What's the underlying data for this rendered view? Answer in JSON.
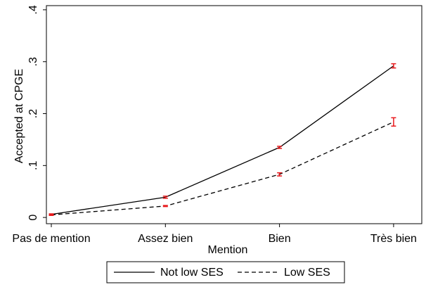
{
  "chart_data": {
    "type": "line",
    "x_label": "Mention",
    "y_label": "Accepted at CPGE",
    "categories": [
      "Pas de mention",
      "Assez bien",
      "Bien",
      "Très bien"
    ],
    "series": [
      {
        "name": "Not low SES",
        "color": "#000000",
        "dash": false,
        "values": [
          0.006,
          0.039,
          0.135,
          0.292
        ],
        "errors": [
          0.001,
          0.002,
          0.002,
          0.004
        ]
      },
      {
        "name": "Low SES",
        "color": "#000000",
        "dash": true,
        "values": [
          0.005,
          0.022,
          0.083,
          0.184
        ],
        "errors": [
          0.001,
          0.001,
          0.003,
          0.008
        ]
      }
    ],
    "error_color": "#e8191c",
    "ylim": [
      -0.012,
      0.408
    ],
    "yticks": [
      0,
      {
        "value": 0.1,
        "label": ".1"
      },
      {
        "value": 0.2,
        "label": ".2"
      },
      {
        "value": 0.3,
        "label": ".3"
      },
      {
        "value": 0.4,
        "label": ".4"
      }
    ],
    "grid": false
  }
}
